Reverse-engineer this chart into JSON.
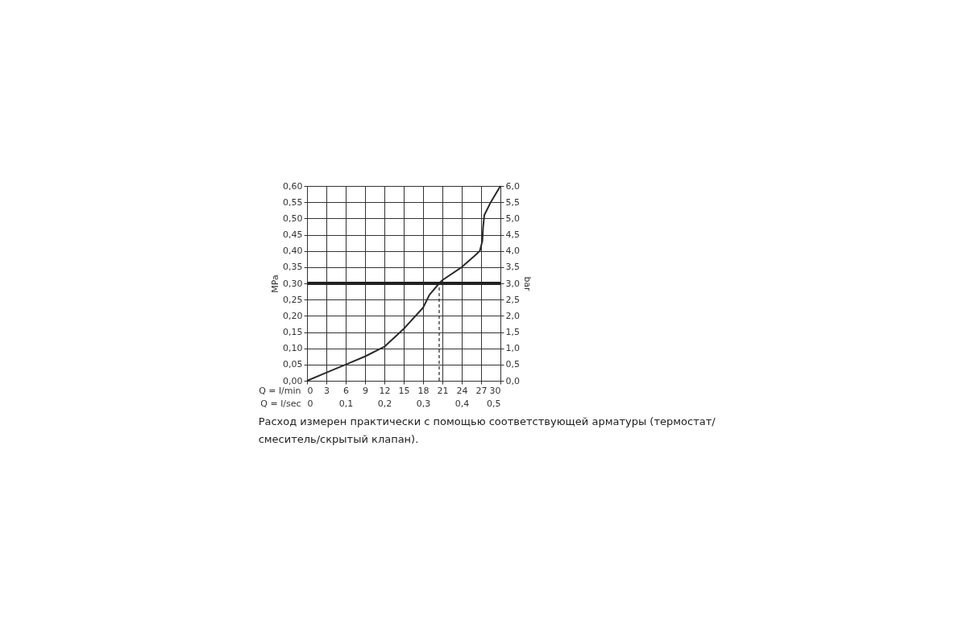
{
  "chart_data": {
    "type": "line",
    "xlabel": "Q = l/min",
    "x2label": "Q = l/sec",
    "ylabel": "MPa",
    "y2label": "bar",
    "x": [
      0,
      3,
      6,
      9,
      12,
      15,
      18,
      19,
      20.5,
      21,
      24,
      26,
      26.8,
      27.2,
      27.3,
      27.5,
      28.5,
      30
    ],
    "series": [
      {
        "color": "#2a2a2a",
        "values": [
          0,
          0.025,
          0.05,
          0.075,
          0.105,
          0.16,
          0.225,
          0.265,
          0.3,
          0.31,
          0.35,
          0.385,
          0.4,
          0.43,
          0.47,
          0.51,
          0.55,
          0.6
        ]
      }
    ],
    "xlim": [
      0,
      30
    ],
    "xticks": [
      0,
      3,
      6,
      9,
      12,
      15,
      18,
      21,
      24,
      27,
      30
    ],
    "x2lim": [
      0,
      0.5
    ],
    "x2ticks": [
      0,
      {
        "value": 0.1,
        "label": "0,1"
      },
      {
        "value": 0.2,
        "label": "0,2"
      },
      {
        "value": 0.3,
        "label": "0,3"
      },
      {
        "value": 0.4,
        "label": "0,4"
      },
      {
        "value": 0.5,
        "label": "0,5"
      }
    ],
    "ylim": [
      0,
      0.6
    ],
    "yticks": [
      {
        "value": 0,
        "label": "0,00"
      },
      {
        "value": 0.05,
        "label": "0,05"
      },
      {
        "value": 0.1,
        "label": "0,10"
      },
      {
        "value": 0.15,
        "label": "0,15"
      },
      {
        "value": 0.2,
        "label": "0,20"
      },
      {
        "value": 0.25,
        "label": "0,25"
      },
      {
        "value": 0.3,
        "label": "0,30"
      },
      {
        "value": 0.35,
        "label": "0,35"
      },
      {
        "value": 0.4,
        "label": "0,40"
      },
      {
        "value": 0.45,
        "label": "0,45"
      },
      {
        "value": 0.5,
        "label": "0,50"
      },
      {
        "value": 0.55,
        "label": "0,55"
      },
      {
        "value": 0.6,
        "label": "0,60"
      }
    ],
    "y2lim": [
      0,
      6
    ],
    "y2ticks": [
      {
        "value": 0,
        "label": "0,0"
      },
      {
        "value": 0.5,
        "label": "0,5"
      },
      {
        "value": 1,
        "label": "1,0"
      },
      {
        "value": 1.5,
        "label": "1,5"
      },
      {
        "value": 2,
        "label": "2,0"
      },
      {
        "value": 2.5,
        "label": "2,5"
      },
      {
        "value": 3,
        "label": "3,0"
      },
      {
        "value": 3.5,
        "label": "3,5"
      },
      {
        "value": 4,
        "label": "4,0"
      },
      {
        "value": 4.5,
        "label": "4,5"
      },
      {
        "value": 5,
        "label": "5,0"
      },
      {
        "value": 5.5,
        "label": "5,5"
      },
      {
        "value": 6,
        "label": "6,0"
      }
    ],
    "ref_lines": [
      {
        "axis": "y",
        "value": 0.3,
        "color": "#222222",
        "line_style": "solid"
      },
      {
        "axis": "x",
        "value": 20.5,
        "color": "#222222",
        "line_style": "dashed"
      }
    ],
    "grid": true,
    "marker": "none",
    "line_style": "solid",
    "annotations": [
      "Расход измерен практически с помощью соответствующей арматуры (термостат/смеситель/скрытый клапан)."
    ]
  }
}
